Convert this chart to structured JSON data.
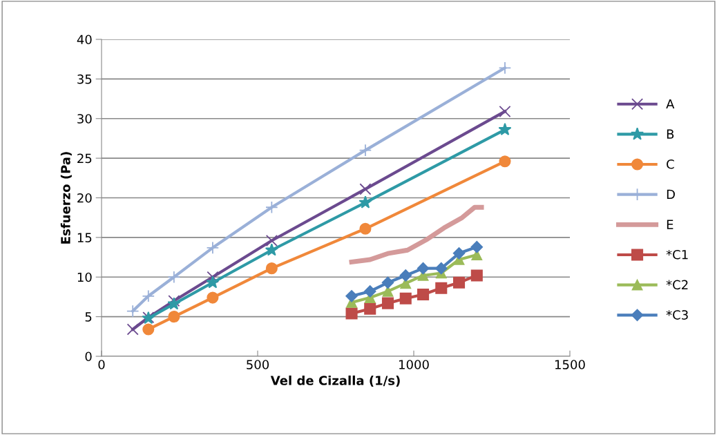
{
  "chart_data": {
    "type": "line",
    "xlabel": "Vel de Cizalla (1/s)",
    "ylabel": "Esfuerzo (Pa)",
    "xlim": [
      0,
      1500
    ],
    "xticks": [
      0,
      500,
      1000,
      1500
    ],
    "ylim": [
      0,
      40
    ],
    "yticks": [
      0,
      5,
      10,
      15,
      20,
      25,
      30,
      35,
      40
    ],
    "grid": "y",
    "legend": "right",
    "series": [
      {
        "name": "A",
        "color": "#6b4a8f",
        "marker": "cross",
        "x": [
          100,
          150,
          232,
          356,
          545,
          845,
          1292
        ],
        "values": [
          3.4,
          4.9,
          7.0,
          10.0,
          14.6,
          21.1,
          30.9
        ]
      },
      {
        "name": "B",
        "color": "#2e9aa6",
        "marker": "star",
        "x": [
          150,
          232,
          356,
          545,
          845,
          1292
        ],
        "values": [
          4.8,
          6.6,
          9.3,
          13.4,
          19.4,
          28.6
        ]
      },
      {
        "name": "C",
        "color": "#f0883a",
        "marker": "circle",
        "x": [
          150,
          232,
          356,
          545,
          845,
          1292
        ],
        "values": [
          3.4,
          5.0,
          7.4,
          11.1,
          16.1,
          24.6
        ]
      },
      {
        "name": "D",
        "color": "#9ab0d8",
        "marker": "plus",
        "x": [
          100,
          150,
          232,
          356,
          545,
          845,
          1292
        ],
        "values": [
          5.7,
          7.6,
          10.0,
          13.7,
          18.8,
          26.0,
          36.4
        ]
      },
      {
        "name": "E",
        "color": "#d49a9a",
        "marker": "none",
        "x": [
          801,
          860,
          920,
          980,
          1040,
          1097,
          1155,
          1195,
          1217
        ],
        "values": [
          11.9,
          12.2,
          13.0,
          13.4,
          14.7,
          16.2,
          17.5,
          18.8,
          18.8
        ]
      },
      {
        "name": "*C1",
        "color": "#be4b48",
        "marker": "square",
        "x": [
          801,
          860,
          917,
          974,
          1030,
          1088,
          1145,
          1202
        ],
        "values": [
          5.4,
          6.0,
          6.7,
          7.3,
          7.8,
          8.6,
          9.3,
          10.2
        ]
      },
      {
        "name": "*C2",
        "color": "#9bbb59",
        "marker": "triangle",
        "x": [
          801,
          860,
          917,
          974,
          1030,
          1088,
          1145,
          1202
        ],
        "values": [
          6.8,
          7.4,
          8.2,
          9.2,
          10.2,
          10.5,
          12.2,
          12.8
        ]
      },
      {
        "name": "*C3",
        "color": "#4a7ebb",
        "marker": "diamond",
        "x": [
          801,
          860,
          917,
          974,
          1030,
          1088,
          1145,
          1202
        ],
        "values": [
          7.6,
          8.2,
          9.3,
          10.2,
          11.1,
          11.1,
          13.0,
          13.8
        ]
      }
    ]
  }
}
